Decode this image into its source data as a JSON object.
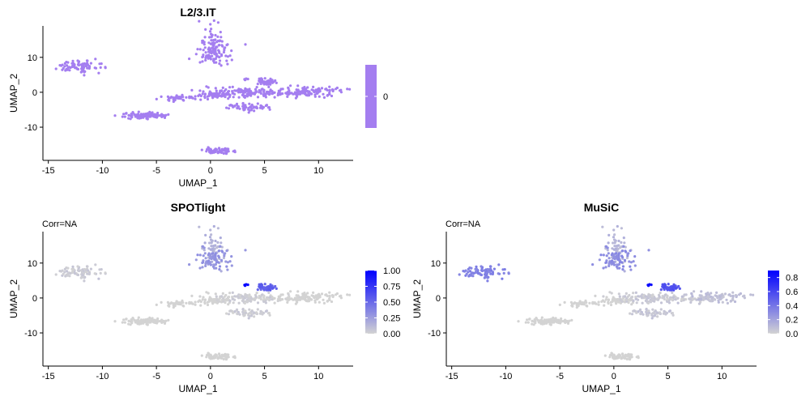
{
  "chart_data": [
    {
      "type": "scatter",
      "title": "L2/3.IT",
      "subtitle": "",
      "xlabel": "UMAP_1",
      "ylabel": "UMAP_2",
      "xticks": [
        -15,
        -10,
        -5,
        0,
        5,
        10
      ],
      "yticks": [
        10,
        0,
        -10
      ],
      "xlim": [
        -15.5,
        13.2
      ],
      "ylim": [
        -19.5,
        19
      ],
      "legend": {
        "position": "right",
        "type": "colorbar",
        "ticks": [
          0
        ],
        "range": [
          0,
          0
        ],
        "low_color": "#a47ef0",
        "high_color": "#a47ef0"
      },
      "color_min": 0,
      "color_max": 0,
      "clusters": [
        {
          "cx": -12.2,
          "cy": 7.2,
          "sx": 0.95,
          "sy": 0.9,
          "n": 90,
          "value": 0
        },
        {
          "cx": 0.2,
          "cy": 14,
          "sx": 0.45,
          "sy": 2.4,
          "n": 60,
          "value": 0
        },
        {
          "cx": 0.3,
          "cy": 11,
          "sx": 0.8,
          "sy": 1.5,
          "n": 80,
          "value": 0
        },
        {
          "cx": -6.2,
          "cy": -6.6,
          "sx": 1.0,
          "sy": 0.45,
          "n": 100,
          "value": 0
        },
        {
          "cx": -3.0,
          "cy": -1.7,
          "sx": 0.9,
          "sy": 0.4,
          "n": 45,
          "value": 0
        },
        {
          "cx": 0.3,
          "cy": -0.8,
          "sx": 0.85,
          "sy": 0.35,
          "n": 55,
          "value": 0
        },
        {
          "cx": 3.5,
          "cy": 0.0,
          "sx": 2.0,
          "sy": 0.8,
          "n": 120,
          "value": 0
        },
        {
          "cx": 3.2,
          "cy": 3.6,
          "sx": 0.1,
          "sy": 0.15,
          "n": 5,
          "value": 0
        },
        {
          "cx": 5.2,
          "cy": 3.0,
          "sx": 0.6,
          "sy": 0.45,
          "n": 50,
          "value": 0
        },
        {
          "cx": 3.3,
          "cy": -4.0,
          "sx": 0.9,
          "sy": 0.55,
          "n": 60,
          "value": 0
        },
        {
          "cx": 7.0,
          "cy": -0.3,
          "sx": 1.0,
          "sy": 0.25,
          "n": 30,
          "value": 0
        },
        {
          "cx": 9.6,
          "cy": 0.2,
          "sx": 1.4,
          "sy": 0.8,
          "n": 100,
          "value": 0
        },
        {
          "cx": 0.7,
          "cy": -16.7,
          "sx": 0.75,
          "sy": 0.45,
          "n": 70,
          "value": 0
        }
      ]
    },
    {
      "type": "scatter",
      "title": "SPOTlight",
      "subtitle": "Corr=NA",
      "xlabel": "UMAP_1",
      "ylabel": "UMAP_2",
      "xticks": [
        -15,
        -10,
        -5,
        0,
        5,
        10
      ],
      "yticks": [
        10,
        0,
        -10
      ],
      "xlim": [
        -15.5,
        13.2
      ],
      "ylim": [
        -19.5,
        19
      ],
      "legend": {
        "position": "right",
        "type": "colorbar",
        "ticks": [
          "0.00",
          "0.25",
          "0.50",
          "0.75",
          "1.00"
        ],
        "range": [
          0,
          1
        ],
        "low_color": "#d3d3d3",
        "high_color": "#0000ff"
      },
      "color_min": 0,
      "color_max": 1,
      "clusters": [
        {
          "cx": -12.2,
          "cy": 7.2,
          "sx": 0.95,
          "sy": 0.9,
          "n": 90,
          "value": 0.04
        },
        {
          "cx": 0.2,
          "cy": 14,
          "sx": 0.45,
          "sy": 2.4,
          "n": 60,
          "value": 0.15
        },
        {
          "cx": 0.3,
          "cy": 11,
          "sx": 0.8,
          "sy": 1.5,
          "n": 80,
          "value": 0.3
        },
        {
          "cx": -6.2,
          "cy": -6.6,
          "sx": 1.0,
          "sy": 0.45,
          "n": 100,
          "value": 0
        },
        {
          "cx": -3.0,
          "cy": -1.7,
          "sx": 0.9,
          "sy": 0.4,
          "n": 45,
          "value": 0
        },
        {
          "cx": 0.3,
          "cy": -0.8,
          "sx": 0.85,
          "sy": 0.35,
          "n": 55,
          "value": 0
        },
        {
          "cx": 3.5,
          "cy": 0.0,
          "sx": 2.0,
          "sy": 0.8,
          "n": 120,
          "value": 0.02
        },
        {
          "cx": 3.2,
          "cy": 3.6,
          "sx": 0.1,
          "sy": 0.15,
          "n": 5,
          "value": 1.0
        },
        {
          "cx": 5.2,
          "cy": 3.0,
          "sx": 0.6,
          "sy": 0.45,
          "n": 50,
          "value": 0.55
        },
        {
          "cx": 3.3,
          "cy": -4.0,
          "sx": 0.9,
          "sy": 0.55,
          "n": 60,
          "value": 0.03
        },
        {
          "cx": 7.0,
          "cy": -0.3,
          "sx": 1.0,
          "sy": 0.25,
          "n": 30,
          "value": 0
        },
        {
          "cx": 9.6,
          "cy": 0.2,
          "sx": 1.4,
          "sy": 0.8,
          "n": 100,
          "value": 0
        },
        {
          "cx": 0.7,
          "cy": -16.7,
          "sx": 0.75,
          "sy": 0.45,
          "n": 70,
          "value": 0
        }
      ]
    },
    {
      "type": "scatter",
      "title": "MuSiC",
      "subtitle": "Corr=NA",
      "xlabel": "UMAP_1",
      "ylabel": "UMAP_2",
      "xticks": [
        -15,
        -10,
        -5,
        0,
        5,
        10
      ],
      "yticks": [
        10,
        0,
        -10
      ],
      "xlim": [
        -15.5,
        13.2
      ],
      "ylim": [
        -19.5,
        19
      ],
      "legend": {
        "position": "right",
        "type": "colorbar",
        "ticks": [
          "0.0",
          "0.2",
          "0.4",
          "0.6",
          "0.8"
        ],
        "range": [
          0,
          0.9
        ],
        "low_color": "#d3d3d3",
        "high_color": "#0000ff"
      },
      "color_min": 0,
      "color_max": 0.9,
      "clusters": [
        {
          "cx": -12.2,
          "cy": 7.2,
          "sx": 0.95,
          "sy": 0.9,
          "n": 90,
          "value": 0.35
        },
        {
          "cx": 0.2,
          "cy": 14,
          "sx": 0.45,
          "sy": 2.4,
          "n": 60,
          "value": 0.12
        },
        {
          "cx": 0.3,
          "cy": 11,
          "sx": 0.8,
          "sy": 1.5,
          "n": 80,
          "value": 0.3
        },
        {
          "cx": -6.2,
          "cy": -6.6,
          "sx": 1.0,
          "sy": 0.45,
          "n": 100,
          "value": 0
        },
        {
          "cx": -3.0,
          "cy": -1.7,
          "sx": 0.9,
          "sy": 0.4,
          "n": 45,
          "value": 0
        },
        {
          "cx": 0.3,
          "cy": -0.8,
          "sx": 0.85,
          "sy": 0.35,
          "n": 55,
          "value": 0
        },
        {
          "cx": 3.5,
          "cy": 0.0,
          "sx": 2.0,
          "sy": 0.8,
          "n": 120,
          "value": 0.04
        },
        {
          "cx": 3.2,
          "cy": 3.6,
          "sx": 0.1,
          "sy": 0.15,
          "n": 5,
          "value": 0.85
        },
        {
          "cx": 5.2,
          "cy": 3.0,
          "sx": 0.6,
          "sy": 0.45,
          "n": 50,
          "value": 0.55
        },
        {
          "cx": 3.3,
          "cy": -4.0,
          "sx": 0.9,
          "sy": 0.55,
          "n": 60,
          "value": 0.05
        },
        {
          "cx": 7.0,
          "cy": -0.3,
          "sx": 1.0,
          "sy": 0.25,
          "n": 30,
          "value": 0.02
        },
        {
          "cx": 9.6,
          "cy": 0.2,
          "sx": 1.4,
          "sy": 0.8,
          "n": 100,
          "value": 0.08
        },
        {
          "cx": 0.7,
          "cy": -16.7,
          "sx": 0.75,
          "sy": 0.45,
          "n": 70,
          "value": 0
        }
      ]
    }
  ]
}
